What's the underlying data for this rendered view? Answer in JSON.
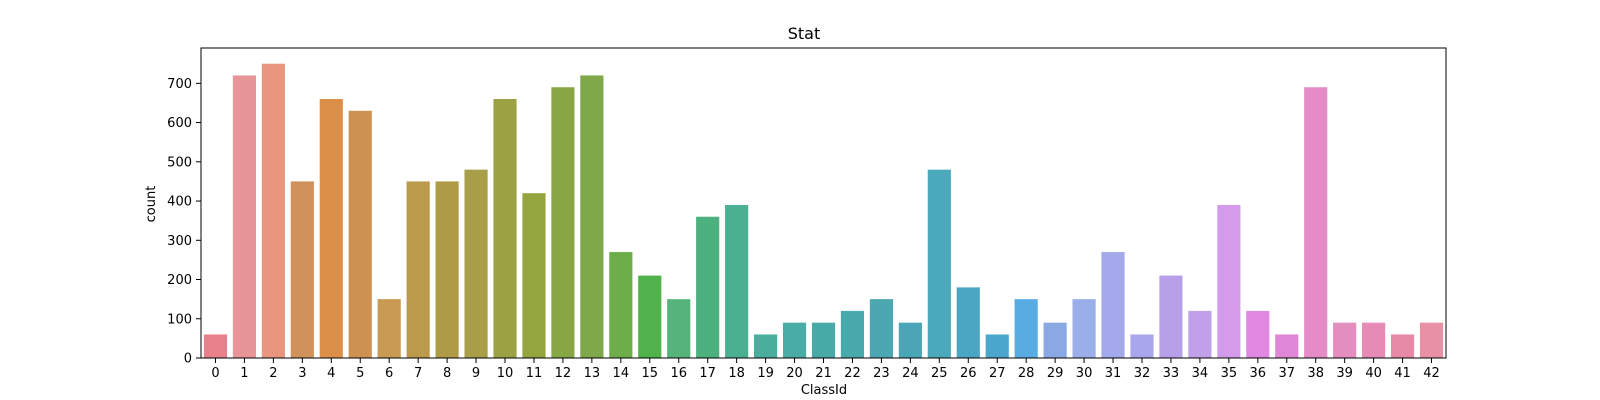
{
  "chart_data": {
    "type": "bar",
    "title": "Stat",
    "xlabel": "ClassId",
    "ylabel": "count",
    "ylim": [
      0,
      790
    ],
    "yticks": [
      0,
      100,
      200,
      300,
      400,
      500,
      600,
      700
    ],
    "grid": false,
    "categories": [
      "0",
      "1",
      "2",
      "3",
      "4",
      "5",
      "6",
      "7",
      "8",
      "9",
      "10",
      "11",
      "12",
      "13",
      "14",
      "15",
      "16",
      "17",
      "18",
      "19",
      "20",
      "21",
      "22",
      "23",
      "24",
      "25",
      "26",
      "27",
      "28",
      "29",
      "30",
      "31",
      "32",
      "33",
      "34",
      "35",
      "36",
      "37",
      "38",
      "39",
      "40",
      "41",
      "42"
    ],
    "values": [
      60,
      720,
      750,
      450,
      660,
      630,
      150,
      450,
      450,
      480,
      660,
      420,
      690,
      720,
      270,
      210,
      150,
      360,
      390,
      60,
      90,
      90,
      120,
      150,
      90,
      480,
      180,
      60,
      150,
      90,
      150,
      270,
      60,
      210,
      120,
      390,
      120,
      60,
      690,
      90,
      90,
      60,
      90
    ],
    "colors": [
      "#e8818b",
      "#e8959a",
      "#e8967d",
      "#d1915a",
      "#db8f49",
      "#cd9251",
      "#c99a51",
      "#bc9a4b",
      "#b09c48",
      "#a89f48",
      "#9aa244",
      "#94a43f",
      "#87a744",
      "#7ea84a",
      "#6eae4a",
      "#4fb24a",
      "#56b37c",
      "#4cb07f",
      "#4ab091",
      "#4aae9c",
      "#4aaca6",
      "#48aaa7",
      "#4aa9ad",
      "#4ba8b2",
      "#4aa6b7",
      "#4aaabb",
      "#4aa6c3",
      "#4ba6cc",
      "#59ace1",
      "#8aa8e3",
      "#9aaeea",
      "#a3a9eb",
      "#aaa6ec",
      "#b8a0e8",
      "#c0a0e8",
      "#d39bea",
      "#e088e2",
      "#e086d6",
      "#e48bc8",
      "#e48ec0",
      "#e58bb5",
      "#e68aa6",
      "#e890a4"
    ]
  }
}
